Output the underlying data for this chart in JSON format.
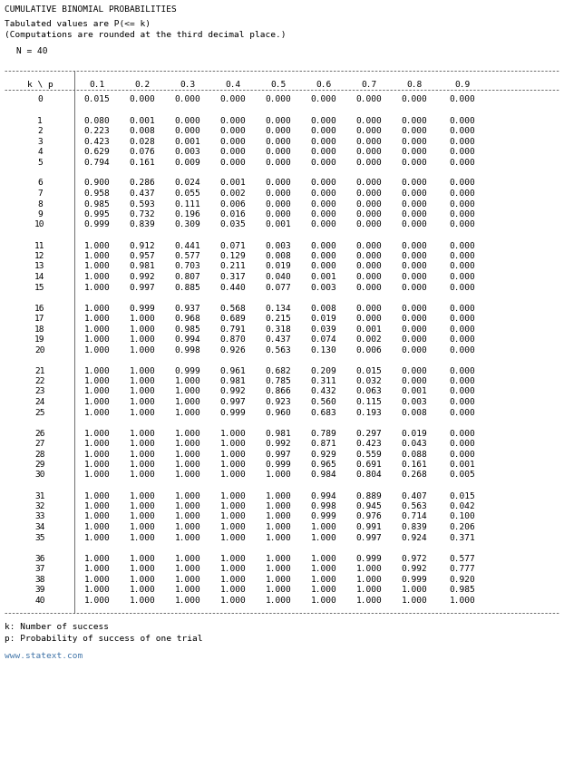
{
  "title": "CUMULATIVE BINOMIAL PROBABILITIES",
  "subtitle1": "   Tabulated values are P(<= k)",
  "subtitle2": "   (Computations are rounded at the third decimal place.)",
  "n_label": "     N = 40",
  "col_header_str": "  k \\ p |    0.1    0.2    0.3    0.4    0.5    0.6    0.7    0.8    0.9",
  "footer1": "k: Number of success",
  "footer2": "p: Probability of success of one trial",
  "url": "www.statext.com",
  "rows": [
    [
      0,
      0.015,
      0.0,
      0.0,
      0.0,
      0.0,
      0.0,
      0.0,
      0.0,
      0.0
    ],
    [
      1,
      0.08,
      0.001,
      0.0,
      0.0,
      0.0,
      0.0,
      0.0,
      0.0,
      0.0
    ],
    [
      2,
      0.223,
      0.008,
      0.0,
      0.0,
      0.0,
      0.0,
      0.0,
      0.0,
      0.0
    ],
    [
      3,
      0.423,
      0.028,
      0.001,
      0.0,
      0.0,
      0.0,
      0.0,
      0.0,
      0.0
    ],
    [
      4,
      0.629,
      0.076,
      0.003,
      0.0,
      0.0,
      0.0,
      0.0,
      0.0,
      0.0
    ],
    [
      5,
      0.794,
      0.161,
      0.009,
      0.0,
      0.0,
      0.0,
      0.0,
      0.0,
      0.0
    ],
    [
      6,
      0.9,
      0.286,
      0.024,
      0.001,
      0.0,
      0.0,
      0.0,
      0.0,
      0.0
    ],
    [
      7,
      0.958,
      0.437,
      0.055,
      0.002,
      0.0,
      0.0,
      0.0,
      0.0,
      0.0
    ],
    [
      8,
      0.985,
      0.593,
      0.111,
      0.006,
      0.0,
      0.0,
      0.0,
      0.0,
      0.0
    ],
    [
      9,
      0.995,
      0.732,
      0.196,
      0.016,
      0.0,
      0.0,
      0.0,
      0.0,
      0.0
    ],
    [
      10,
      0.999,
      0.839,
      0.309,
      0.035,
      0.001,
      0.0,
      0.0,
      0.0,
      0.0
    ],
    [
      11,
      1.0,
      0.912,
      0.441,
      0.071,
      0.003,
      0.0,
      0.0,
      0.0,
      0.0
    ],
    [
      12,
      1.0,
      0.957,
      0.577,
      0.129,
      0.008,
      0.0,
      0.0,
      0.0,
      0.0
    ],
    [
      13,
      1.0,
      0.981,
      0.703,
      0.211,
      0.019,
      0.0,
      0.0,
      0.0,
      0.0
    ],
    [
      14,
      1.0,
      0.992,
      0.807,
      0.317,
      0.04,
      0.001,
      0.0,
      0.0,
      0.0
    ],
    [
      15,
      1.0,
      0.997,
      0.885,
      0.44,
      0.077,
      0.003,
      0.0,
      0.0,
      0.0
    ],
    [
      16,
      1.0,
      0.999,
      0.937,
      0.568,
      0.134,
      0.008,
      0.0,
      0.0,
      0.0
    ],
    [
      17,
      1.0,
      1.0,
      0.968,
      0.689,
      0.215,
      0.019,
      0.0,
      0.0,
      0.0
    ],
    [
      18,
      1.0,
      1.0,
      0.985,
      0.791,
      0.318,
      0.039,
      0.001,
      0.0,
      0.0
    ],
    [
      19,
      1.0,
      1.0,
      0.994,
      0.87,
      0.437,
      0.074,
      0.002,
      0.0,
      0.0
    ],
    [
      20,
      1.0,
      1.0,
      0.998,
      0.926,
      0.563,
      0.13,
      0.006,
      0.0,
      0.0
    ],
    [
      21,
      1.0,
      1.0,
      0.999,
      0.961,
      0.682,
      0.209,
      0.015,
      0.0,
      0.0
    ],
    [
      22,
      1.0,
      1.0,
      1.0,
      0.981,
      0.785,
      0.311,
      0.032,
      0.0,
      0.0
    ],
    [
      23,
      1.0,
      1.0,
      1.0,
      0.992,
      0.866,
      0.432,
      0.063,
      0.001,
      0.0
    ],
    [
      24,
      1.0,
      1.0,
      1.0,
      0.997,
      0.923,
      0.56,
      0.115,
      0.003,
      0.0
    ],
    [
      25,
      1.0,
      1.0,
      1.0,
      0.999,
      0.96,
      0.683,
      0.193,
      0.008,
      0.0
    ],
    [
      26,
      1.0,
      1.0,
      1.0,
      1.0,
      0.981,
      0.789,
      0.297,
      0.019,
      0.0
    ],
    [
      27,
      1.0,
      1.0,
      1.0,
      1.0,
      0.992,
      0.871,
      0.423,
      0.043,
      0.0
    ],
    [
      28,
      1.0,
      1.0,
      1.0,
      1.0,
      0.997,
      0.929,
      0.559,
      0.088,
      0.0
    ],
    [
      29,
      1.0,
      1.0,
      1.0,
      1.0,
      0.999,
      0.965,
      0.691,
      0.161,
      0.001
    ],
    [
      30,
      1.0,
      1.0,
      1.0,
      1.0,
      1.0,
      0.984,
      0.804,
      0.268,
      0.005
    ],
    [
      31,
      1.0,
      1.0,
      1.0,
      1.0,
      1.0,
      0.994,
      0.889,
      0.407,
      0.015
    ],
    [
      32,
      1.0,
      1.0,
      1.0,
      1.0,
      1.0,
      0.998,
      0.945,
      0.563,
      0.042
    ],
    [
      33,
      1.0,
      1.0,
      1.0,
      1.0,
      1.0,
      0.999,
      0.976,
      0.714,
      0.1
    ],
    [
      34,
      1.0,
      1.0,
      1.0,
      1.0,
      1.0,
      1.0,
      0.991,
      0.839,
      0.206
    ],
    [
      35,
      1.0,
      1.0,
      1.0,
      1.0,
      1.0,
      1.0,
      0.997,
      0.924,
      0.371
    ],
    [
      36,
      1.0,
      1.0,
      1.0,
      1.0,
      1.0,
      1.0,
      0.999,
      0.972,
      0.577
    ],
    [
      37,
      1.0,
      1.0,
      1.0,
      1.0,
      1.0,
      1.0,
      1.0,
      0.992,
      0.777
    ],
    [
      38,
      1.0,
      1.0,
      1.0,
      1.0,
      1.0,
      1.0,
      1.0,
      0.999,
      0.92
    ],
    [
      39,
      1.0,
      1.0,
      1.0,
      1.0,
      1.0,
      1.0,
      1.0,
      1.0,
      0.985
    ],
    [
      40,
      1.0,
      1.0,
      1.0,
      1.0,
      1.0,
      1.0,
      1.0,
      1.0,
      1.0
    ]
  ],
  "bg_color": "#ffffff",
  "text_color": "#000000",
  "url_color": "#4477aa",
  "font_size": 6.8,
  "mono_font": "DejaVu Sans Mono",
  "group_breaks": [
    0,
    5,
    10,
    15,
    20,
    25,
    30,
    35
  ]
}
